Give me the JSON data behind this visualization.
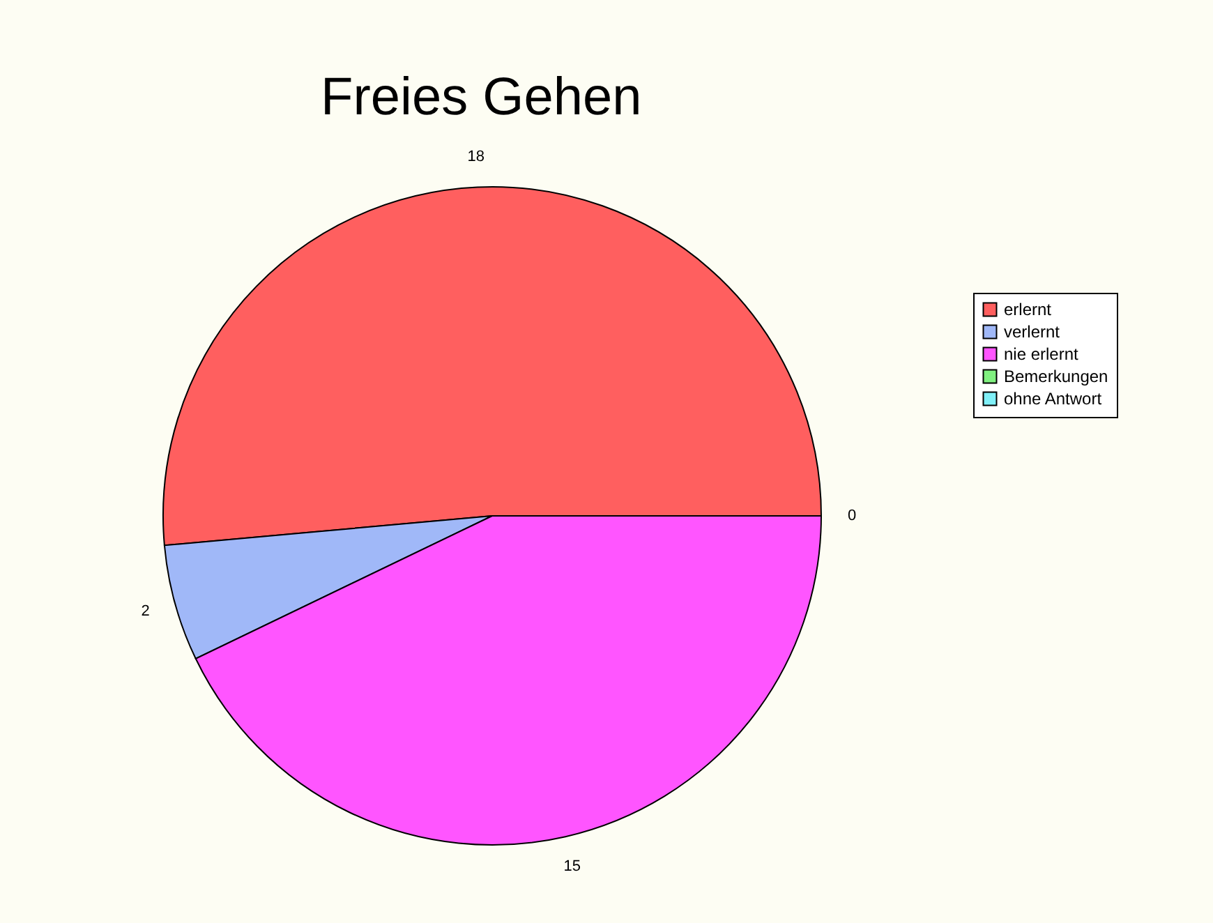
{
  "chart_data": {
    "type": "pie",
    "title": "Freies Gehen",
    "categories": [
      "erlernt",
      "verlernt",
      "nie erlernt",
      "Bemerkungen",
      "ohne Antwort"
    ],
    "values": [
      18,
      2,
      15,
      0,
      0
    ],
    "colors": [
      "#ff5f5f",
      "#a0b8f8",
      "#ff55ff",
      "#80f080",
      "#80f0f8"
    ],
    "value_labels": [
      "18",
      "2",
      "15",
      "0",
      null
    ],
    "legend": "right"
  }
}
